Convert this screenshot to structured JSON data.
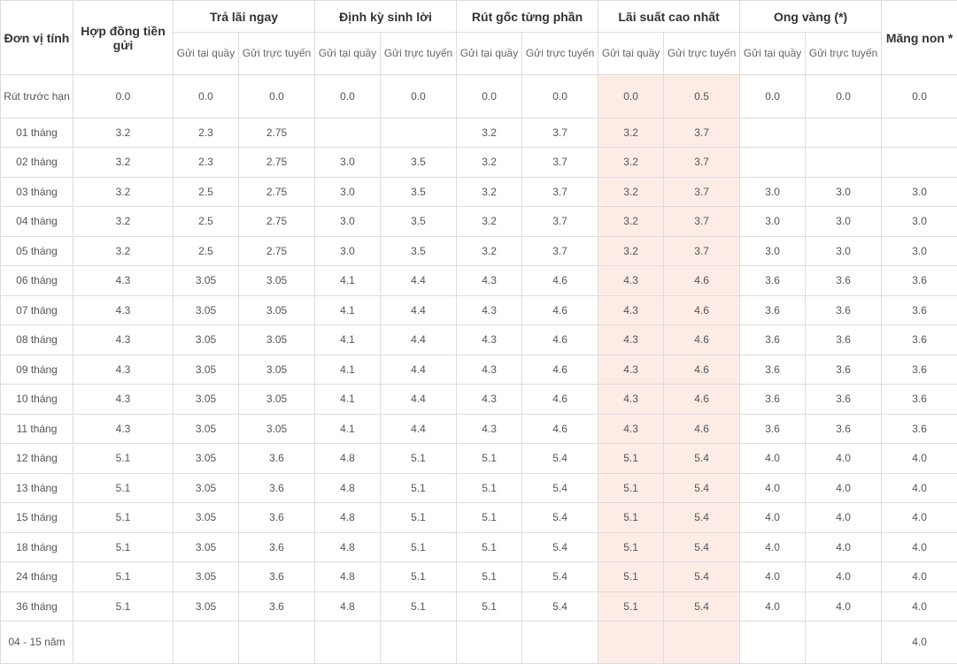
{
  "headers": {
    "unit": "Đơn vị tính",
    "contract": "Hợp đồng tiền gửi",
    "groups": [
      "Trả lãi ngay",
      "Định kỳ sinh lời",
      "Rút gốc từng phần",
      "Lãi suất cao nhất",
      "Ong vàng (*)"
    ],
    "mang_non": "Măng non *",
    "sub_counter": "Gửi tại quầy",
    "sub_online": "Gửi trực tuyến"
  },
  "rows": [
    [
      "Rút trước hạn",
      "0.0",
      "0.0",
      "0.0",
      "0.0",
      "0.0",
      "0.0",
      "0.0",
      "0.0",
      "0.5",
      "0.0",
      "0.0",
      "0.0"
    ],
    [
      "01 tháng",
      "3.2",
      "2.3",
      "2.75",
      "",
      "",
      "3.2",
      "3.7",
      "3.2",
      "3.7",
      "",
      "",
      ""
    ],
    [
      "02 tháng",
      "3.2",
      "2.3",
      "2.75",
      "3.0",
      "3.5",
      "3.2",
      "3.7",
      "3.2",
      "3.7",
      "",
      "",
      ""
    ],
    [
      "03 tháng",
      "3.2",
      "2.5",
      "2.75",
      "3.0",
      "3.5",
      "3.2",
      "3.7",
      "3.2",
      "3.7",
      "3.0",
      "3.0",
      "3.0"
    ],
    [
      "04 tháng",
      "3.2",
      "2.5",
      "2.75",
      "3.0",
      "3.5",
      "3.2",
      "3.7",
      "3.2",
      "3.7",
      "3.0",
      "3.0",
      "3.0"
    ],
    [
      "05 tháng",
      "3.2",
      "2.5",
      "2.75",
      "3.0",
      "3.5",
      "3.2",
      "3.7",
      "3.2",
      "3.7",
      "3.0",
      "3.0",
      "3.0"
    ],
    [
      "06 tháng",
      "4.3",
      "3.05",
      "3.05",
      "4.1",
      "4.4",
      "4.3",
      "4.6",
      "4.3",
      "4.6",
      "3.6",
      "3.6",
      "3.6"
    ],
    [
      "07 tháng",
      "4.3",
      "3.05",
      "3.05",
      "4.1",
      "4.4",
      "4.3",
      "4.6",
      "4.3",
      "4.6",
      "3.6",
      "3.6",
      "3.6"
    ],
    [
      "08 tháng",
      "4.3",
      "3.05",
      "3.05",
      "4.1",
      "4.4",
      "4.3",
      "4.6",
      "4.3",
      "4.6",
      "3.6",
      "3.6",
      "3.6"
    ],
    [
      "09 tháng",
      "4.3",
      "3.05",
      "3.05",
      "4.1",
      "4.4",
      "4.3",
      "4.6",
      "4.3",
      "4.6",
      "3.6",
      "3.6",
      "3.6"
    ],
    [
      "10 tháng",
      "4.3",
      "3.05",
      "3.05",
      "4.1",
      "4.4",
      "4.3",
      "4.6",
      "4.3",
      "4.6",
      "3.6",
      "3.6",
      "3.6"
    ],
    [
      "11 tháng",
      "4.3",
      "3.05",
      "3.05",
      "4.1",
      "4.4",
      "4.3",
      "4.6",
      "4.3",
      "4.6",
      "3.6",
      "3.6",
      "3.6"
    ],
    [
      "12 tháng",
      "5.1",
      "3.05",
      "3.6",
      "4.8",
      "5.1",
      "5.1",
      "5.4",
      "5.1",
      "5.4",
      "4.0",
      "4.0",
      "4.0"
    ],
    [
      "13 tháng",
      "5.1",
      "3.05",
      "3.6",
      "4.8",
      "5.1",
      "5.1",
      "5.4",
      "5.1",
      "5.4",
      "4.0",
      "4.0",
      "4.0"
    ],
    [
      "15 tháng",
      "5.1",
      "3.05",
      "3.6",
      "4.8",
      "5.1",
      "5.1",
      "5.4",
      "5.1",
      "5.4",
      "4.0",
      "4.0",
      "4.0"
    ],
    [
      "18 tháng",
      "5.1",
      "3.05",
      "3.6",
      "4.8",
      "5.1",
      "5.1",
      "5.4",
      "5.1",
      "5.4",
      "4.0",
      "4.0",
      "4.0"
    ],
    [
      "24 tháng",
      "5.1",
      "3.05",
      "3.6",
      "4.8",
      "5.1",
      "5.1",
      "5.4",
      "5.1",
      "5.4",
      "4.0",
      "4.0",
      "4.0"
    ],
    [
      "36 tháng",
      "5.1",
      "3.05",
      "3.6",
      "4.8",
      "5.1",
      "5.1",
      "5.4",
      "5.1",
      "5.4",
      "4.0",
      "4.0",
      "4.0"
    ],
    [
      "04 - 15 năm",
      "",
      "",
      "",
      "",
      "",
      "",
      "",
      "",
      "",
      "",
      "",
      "4.0"
    ]
  ],
  "colors": {
    "highlight": "#fdece6",
    "border": "#dcdcdc"
  }
}
